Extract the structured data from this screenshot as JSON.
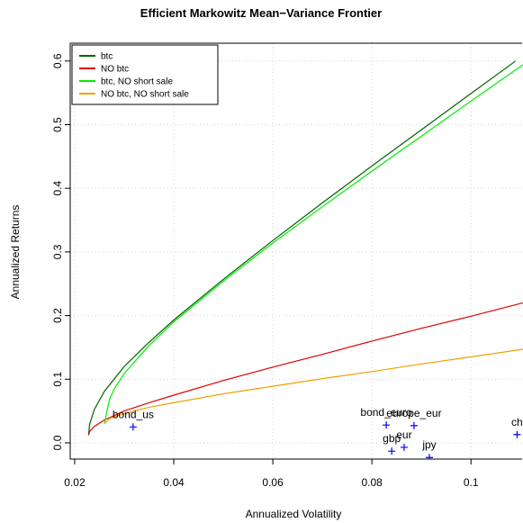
{
  "chart_data": {
    "type": "line",
    "title": "Efficient Markowitz Mean−Variance Frontier",
    "x_label": "Annualized Volatility",
    "y_label": "Annualized Returns",
    "xlim": [
      0.0191,
      0.1105
    ],
    "ylim": [
      -0.0255,
      0.628
    ],
    "xticks": [
      0.02,
      0.04,
      0.06,
      0.08,
      0.1
    ],
    "yticks": [
      0.0,
      0.1,
      0.2,
      0.3,
      0.4,
      0.5,
      0.6
    ],
    "grid": true,
    "legend": "top-left",
    "series": [
      {
        "name": "btc",
        "color": "#006400",
        "x": [
          0.0228,
          0.023,
          0.024,
          0.026,
          0.03,
          0.035,
          0.04,
          0.05,
          0.06,
          0.07,
          0.08,
          0.09,
          0.1,
          0.109
        ],
        "values": [
          0.012,
          0.029,
          0.053,
          0.081,
          0.12,
          0.158,
          0.193,
          0.257,
          0.318,
          0.377,
          0.435,
          0.492,
          0.549,
          0.6
        ]
      },
      {
        "name": "NO btc",
        "color": "#e00000",
        "x": [
          0.0228,
          0.023,
          0.024,
          0.026,
          0.03,
          0.035,
          0.04,
          0.05,
          0.06,
          0.07,
          0.08,
          0.09,
          0.1,
          0.1105
        ],
        "values": [
          0.012,
          0.018,
          0.026,
          0.036,
          0.05,
          0.063,
          0.075,
          0.098,
          0.119,
          0.139,
          0.16,
          0.18,
          0.199,
          0.22
        ]
      },
      {
        "name": "btc, NO short sale",
        "color": "#00ee00",
        "x": [
          0.026,
          0.027,
          0.028,
          0.03,
          0.035,
          0.04,
          0.05,
          0.06,
          0.07,
          0.08,
          0.09,
          0.1,
          0.1105
        ],
        "values": [
          0.03,
          0.068,
          0.085,
          0.109,
          0.153,
          0.19,
          0.254,
          0.314,
          0.371,
          0.427,
          0.482,
          0.537,
          0.594
        ]
      },
      {
        "name": "NO btc, NO short sale",
        "color": "#f0a000",
        "x": [
          0.026,
          0.027,
          0.028,
          0.03,
          0.035,
          0.04,
          0.05,
          0.06,
          0.07,
          0.08,
          0.09,
          0.1,
          0.1105
        ],
        "values": [
          0.03,
          0.038,
          0.041,
          0.046,
          0.056,
          0.063,
          0.077,
          0.089,
          0.101,
          0.112,
          0.124,
          0.135,
          0.147
        ]
      }
    ],
    "points": {
      "color": "#0000ff",
      "labels": [
        "bond_us",
        "bond_euro",
        "europe_eur",
        "gbp",
        "eur",
        "jpy",
        "ch"
      ],
      "x": [
        0.0318,
        0.0829,
        0.0885,
        0.084,
        0.0865,
        0.0916,
        0.1093
      ],
      "values": [
        0.025,
        0.028,
        0.027,
        -0.013,
        -0.007,
        -0.023,
        0.013
      ]
    }
  }
}
